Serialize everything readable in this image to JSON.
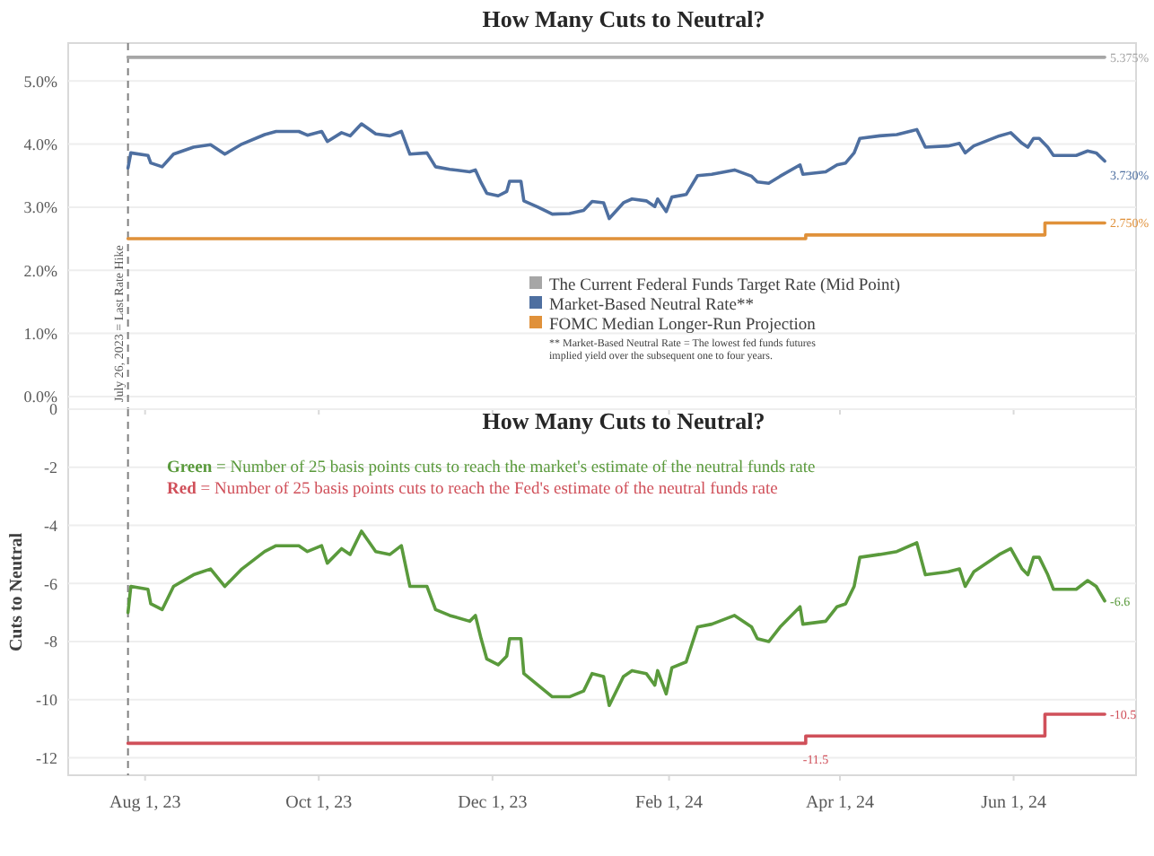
{
  "chart_data": [
    {
      "type": "line",
      "title": "How Many Cuts to Neutral?",
      "xlim": [
        "2023-07-05",
        "2024-07-14"
      ],
      "xticks": [
        {
          "value": "2023-08-01",
          "label": null
        },
        {
          "value": "2023-10-01",
          "label": null
        },
        {
          "value": "2023-12-01",
          "label": null
        },
        {
          "value": "2024-02-01",
          "label": null
        },
        {
          "value": "2024-04-01",
          "label": null
        },
        {
          "value": "2024-06-01",
          "label": null
        }
      ],
      "ylim": [
        -0.2,
        5.6
      ],
      "yticks": [
        {
          "value": 0,
          "label": "0.0%"
        },
        {
          "value": 1,
          "label": "1.0%"
        },
        {
          "value": 2,
          "label": "2.0%"
        },
        {
          "value": 3,
          "label": "3.0%"
        },
        {
          "value": 4,
          "label": "4.0%"
        },
        {
          "value": 5,
          "label": "5.0%"
        }
      ],
      "tick_labels": "y",
      "grid": "y",
      "legend": "bottom",
      "marker": "none",
      "line_style": "solid",
      "ref_lines": [
        {
          "axis": "x",
          "value": "2023-07-26",
          "label": "July 26, 2023 = Last Rate Hike",
          "color": "#808080",
          "line_style": "dashed"
        }
      ],
      "annotations": [
        "** Market-Based Neutral Rate = The lowest fed funds futures implied yield over the subsequent one to four years."
      ],
      "series": [
        {
          "name": "The Current Federal Funds Target Rate (Mid Point)",
          "color": "#a6a6a6",
          "x": [
            "2023-07-26",
            "2024-07-03"
          ],
          "values": [
            5.375,
            5.375
          ],
          "value_labels": [
            null,
            "5.375%"
          ]
        },
        {
          "name": "Market-Based Neutral Rate**",
          "color": "#4e6fa0",
          "x": [
            "2023-07-26",
            "2023-07-27",
            "2023-08-02",
            "2023-08-03",
            "2023-08-07",
            "2023-08-11",
            "2023-08-18",
            "2023-08-24",
            "2023-08-29",
            "2023-09-04",
            "2023-09-12",
            "2023-09-16",
            "2023-09-24",
            "2023-09-27",
            "2023-10-02",
            "2023-10-04",
            "2023-10-09",
            "2023-10-12",
            "2023-10-16",
            "2023-10-21",
            "2023-10-26",
            "2023-10-30",
            "2023-11-02",
            "2023-11-08",
            "2023-11-11",
            "2023-11-16",
            "2023-11-23",
            "2023-11-25",
            "2023-11-27",
            "2023-11-29",
            "2023-12-03",
            "2023-12-06",
            "2023-12-07",
            "2023-12-11",
            "2023-12-12",
            "2023-12-17",
            "2023-12-22",
            "2023-12-28",
            "2024-01-02",
            "2024-01-05",
            "2024-01-09",
            "2024-01-11",
            "2024-01-16",
            "2024-01-19",
            "2024-01-24",
            "2024-01-27",
            "2024-01-28",
            "2024-01-31",
            "2024-02-02",
            "2024-02-07",
            "2024-02-11",
            "2024-02-16",
            "2024-02-24",
            "2024-03-01",
            "2024-03-03",
            "2024-03-07",
            "2024-03-11",
            "2024-03-18",
            "2024-03-19",
            "2024-03-27",
            "2024-03-31",
            "2024-04-03",
            "2024-04-06",
            "2024-04-08",
            "2024-04-15",
            "2024-04-21",
            "2024-04-28",
            "2024-05-01",
            "2024-05-09",
            "2024-05-13",
            "2024-05-15",
            "2024-05-18",
            "2024-05-27",
            "2024-05-31",
            "2024-06-04",
            "2024-06-06",
            "2024-06-08",
            "2024-06-10",
            "2024-06-13",
            "2024-06-15",
            "2024-06-23",
            "2024-06-27",
            "2024-06-30",
            "2024-07-03"
          ],
          "values": [
            3.62,
            3.86,
            3.82,
            3.7,
            3.64,
            3.84,
            3.95,
            3.99,
            3.84,
            4.0,
            4.15,
            4.2,
            4.2,
            4.14,
            4.2,
            4.04,
            4.18,
            4.13,
            4.32,
            4.16,
            4.13,
            4.2,
            3.84,
            3.86,
            3.64,
            3.6,
            3.56,
            3.59,
            3.39,
            3.22,
            3.18,
            3.25,
            3.41,
            3.41,
            3.1,
            3.0,
            2.89,
            2.9,
            2.95,
            3.09,
            3.07,
            2.82,
            3.07,
            3.13,
            3.1,
            3.01,
            3.13,
            2.93,
            3.16,
            3.2,
            3.5,
            3.52,
            3.59,
            3.49,
            3.4,
            3.38,
            3.49,
            3.67,
            3.52,
            3.56,
            3.67,
            3.7,
            3.86,
            4.09,
            4.13,
            4.15,
            4.23,
            3.95,
            3.97,
            4.01,
            3.86,
            3.97,
            4.13,
            4.18,
            4.01,
            3.95,
            4.09,
            4.09,
            3.95,
            3.82,
            3.82,
            3.89,
            3.86,
            3.73
          ],
          "value_labels": [
            null,
            null,
            null,
            null,
            null,
            null,
            null,
            null,
            null,
            null,
            null,
            null,
            null,
            null,
            null,
            null,
            null,
            null,
            null,
            null,
            null,
            null,
            null,
            null,
            null,
            null,
            null,
            null,
            null,
            null,
            null,
            null,
            null,
            null,
            null,
            null,
            null,
            null,
            null,
            null,
            null,
            null,
            null,
            null,
            null,
            null,
            null,
            null,
            null,
            null,
            null,
            null,
            null,
            null,
            null,
            null,
            null,
            null,
            null,
            null,
            null,
            null,
            null,
            null,
            null,
            null,
            null,
            null,
            null,
            null,
            null,
            null,
            null,
            null,
            null,
            null,
            null,
            null,
            null,
            null,
            null,
            null,
            null,
            "3.730%"
          ]
        },
        {
          "name": "FOMC Median Longer-Run Projection",
          "type": "step",
          "color": "#e0913a",
          "x": [
            "2023-07-26",
            "2024-03-20",
            "2024-06-12",
            "2024-07-03"
          ],
          "values": [
            2.5,
            2.56,
            2.75,
            2.75
          ],
          "value_labels": [
            null,
            null,
            null,
            "2.750%"
          ]
        }
      ]
    },
    {
      "type": "line",
      "title": "How Many Cuts to Neutral?",
      "ylabel": "Cuts to Neutral",
      "xlim": [
        "2023-07-05",
        "2024-07-14"
      ],
      "xticks": [
        {
          "value": "2023-08-01",
          "label": "Aug 1, 23"
        },
        {
          "value": "2023-10-01",
          "label": "Oct 1, 23"
        },
        {
          "value": "2023-12-01",
          "label": "Dec 1, 23"
        },
        {
          "value": "2024-02-01",
          "label": "Feb 1, 24"
        },
        {
          "value": "2024-04-01",
          "label": "Apr 1, 24"
        },
        {
          "value": "2024-06-01",
          "label": "Jun 1, 24"
        }
      ],
      "ylim": [
        -12.6,
        0
      ],
      "yticks": [
        0,
        -2,
        -4,
        -6,
        -8,
        -10,
        -12
      ],
      "grid": "y",
      "marker": "none",
      "line_style": "solid",
      "ref_lines": [
        {
          "axis": "x",
          "value": "2023-07-26",
          "color": "#808080",
          "line_style": "dashed"
        }
      ],
      "annotations": [
        "Green = Number of 25 basis points cuts to reach the market's estimate of the neutral funds rate",
        "Red = Number of 25 basis points cuts to reach the Fed's estimate of the neutral funds rate"
      ],
      "series": [
        {
          "color": "#5a9a3c",
          "x": [
            "2023-07-26",
            "2023-07-27",
            "2023-08-02",
            "2023-08-03",
            "2023-08-07",
            "2023-08-11",
            "2023-08-18",
            "2023-08-24",
            "2023-08-29",
            "2023-09-04",
            "2023-09-12",
            "2023-09-16",
            "2023-09-24",
            "2023-09-27",
            "2023-10-02",
            "2023-10-04",
            "2023-10-09",
            "2023-10-12",
            "2023-10-16",
            "2023-10-21",
            "2023-10-26",
            "2023-10-30",
            "2023-11-02",
            "2023-11-08",
            "2023-11-11",
            "2023-11-16",
            "2023-11-23",
            "2023-11-25",
            "2023-11-27",
            "2023-11-29",
            "2023-12-03",
            "2023-12-06",
            "2023-12-07",
            "2023-12-11",
            "2023-12-12",
            "2023-12-17",
            "2023-12-22",
            "2023-12-28",
            "2024-01-02",
            "2024-01-05",
            "2024-01-09",
            "2024-01-11",
            "2024-01-16",
            "2024-01-19",
            "2024-01-24",
            "2024-01-27",
            "2024-01-28",
            "2024-01-31",
            "2024-02-02",
            "2024-02-07",
            "2024-02-11",
            "2024-02-16",
            "2024-02-24",
            "2024-03-01",
            "2024-03-03",
            "2024-03-07",
            "2024-03-11",
            "2024-03-18",
            "2024-03-19",
            "2024-03-27",
            "2024-03-31",
            "2024-04-03",
            "2024-04-06",
            "2024-04-08",
            "2024-04-15",
            "2024-04-21",
            "2024-04-28",
            "2024-05-01",
            "2024-05-09",
            "2024-05-13",
            "2024-05-15",
            "2024-05-18",
            "2024-05-27",
            "2024-05-31",
            "2024-06-04",
            "2024-06-06",
            "2024-06-08",
            "2024-06-10",
            "2024-06-13",
            "2024-06-15",
            "2024-06-23",
            "2024-06-27",
            "2024-06-30",
            "2024-07-03"
          ],
          "values": [
            -7.0,
            -6.1,
            -6.2,
            -6.7,
            -6.9,
            -6.1,
            -5.7,
            -5.5,
            -6.1,
            -5.5,
            -4.9,
            -4.7,
            -4.7,
            -4.9,
            -4.7,
            -5.3,
            -4.8,
            -5.0,
            -4.2,
            -4.9,
            -5.0,
            -4.7,
            -6.1,
            -6.1,
            -6.9,
            -7.1,
            -7.3,
            -7.1,
            -7.9,
            -8.6,
            -8.8,
            -8.5,
            -7.9,
            -7.9,
            -9.1,
            -9.5,
            -9.9,
            -9.9,
            -9.7,
            -9.1,
            -9.2,
            -10.2,
            -9.2,
            -9.0,
            -9.1,
            -9.5,
            -9.0,
            -9.8,
            -8.9,
            -8.7,
            -7.5,
            -7.4,
            -7.1,
            -7.5,
            -7.9,
            -8.0,
            -7.5,
            -6.8,
            -7.4,
            -7.3,
            -6.8,
            -6.7,
            -6.1,
            -5.1,
            -5.0,
            -4.9,
            -4.6,
            -5.7,
            -5.6,
            -5.5,
            -6.1,
            -5.6,
            -5.0,
            -4.8,
            -5.5,
            -5.7,
            -5.1,
            -5.1,
            -5.7,
            -6.2,
            -6.2,
            -5.9,
            -6.1,
            -6.6
          ],
          "value_labels": [
            null,
            null,
            null,
            null,
            null,
            null,
            null,
            null,
            null,
            null,
            null,
            null,
            null,
            null,
            null,
            null,
            null,
            null,
            null,
            null,
            null,
            null,
            null,
            null,
            null,
            null,
            null,
            null,
            null,
            null,
            null,
            null,
            null,
            null,
            null,
            null,
            null,
            null,
            null,
            null,
            null,
            null,
            null,
            null,
            null,
            null,
            null,
            null,
            null,
            null,
            null,
            null,
            null,
            null,
            null,
            null,
            null,
            null,
            null,
            null,
            null,
            null,
            null,
            null,
            null,
            null,
            null,
            null,
            null,
            null,
            null,
            null,
            null,
            null,
            null,
            null,
            null,
            null,
            null,
            null,
            null,
            null,
            null,
            "-6.6"
          ]
        },
        {
          "type": "step",
          "color": "#d0505a",
          "x": [
            "2023-07-26",
            "2024-03-19",
            "2024-03-20",
            "2024-06-12",
            "2024-07-03"
          ],
          "values": [
            -11.5,
            -11.5,
            -11.25,
            -10.5,
            -10.5
          ],
          "value_labels": [
            null,
            "-11.5",
            null,
            null,
            "-10.5"
          ]
        }
      ]
    }
  ]
}
